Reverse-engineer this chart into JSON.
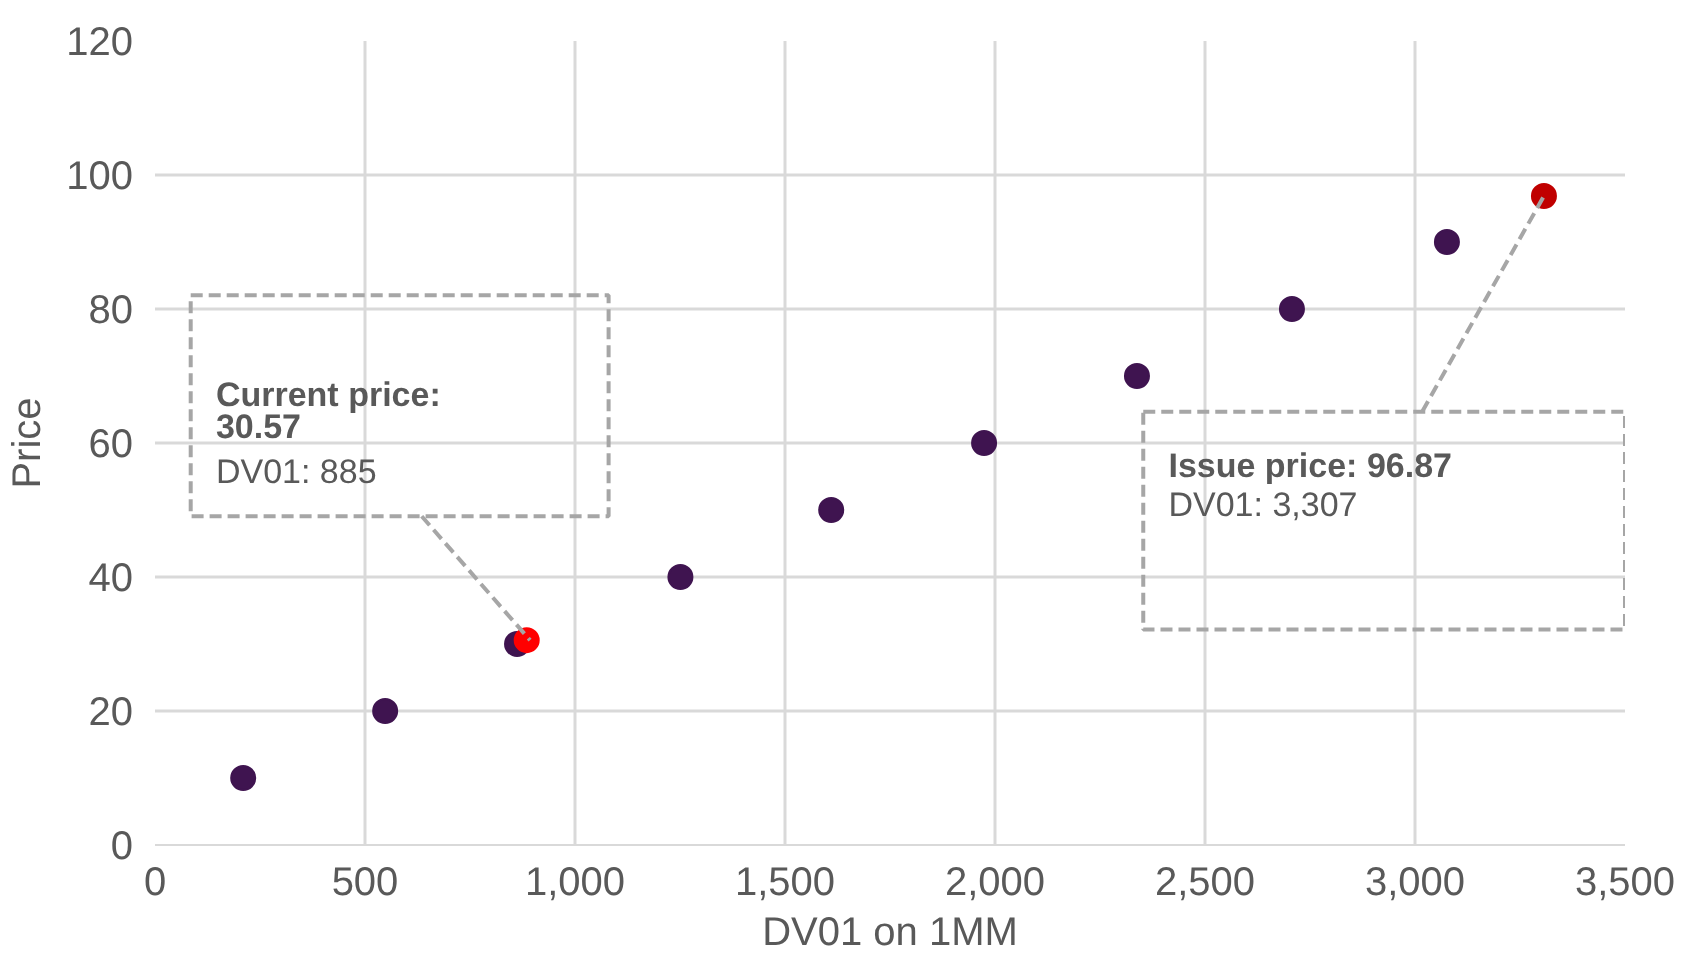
{
  "chart_data": {
    "type": "scatter",
    "xlabel": "DV01 on 1MM",
    "ylabel": "Price",
    "xlim": [
      0,
      3500
    ],
    "ylim": [
      0,
      120
    ],
    "xticks": [
      {
        "value": 0,
        "label": "0"
      },
      {
        "value": 500,
        "label": "500"
      },
      {
        "value": 1000,
        "label": "1,000"
      },
      {
        "value": 1500,
        "label": "1,500"
      },
      {
        "value": 2000,
        "label": "2,000"
      },
      {
        "value": 2500,
        "label": "2,500"
      },
      {
        "value": 3000,
        "label": "3,000"
      },
      {
        "value": 3500,
        "label": "3,500"
      }
    ],
    "yticks": [
      0,
      20,
      40,
      60,
      80,
      100,
      120
    ],
    "grid": true,
    "marker": "circle",
    "series": [
      {
        "color": "#3f1450",
        "x": [
          210,
          548,
          862,
          1251,
          1610,
          1974,
          2338,
          2707,
          3076
        ],
        "values": [
          10,
          20,
          30,
          40,
          50,
          60,
          70,
          80,
          90
        ]
      },
      {
        "color": "#ff0000",
        "x": [
          885
        ],
        "values": [
          30.57
        ]
      },
      {
        "color": "#c00000",
        "x": [
          3307
        ],
        "values": [
          96.87
        ]
      }
    ],
    "annotations": [
      {
        "text": "Current price:\n30.57\nDV01: 885",
        "x": 885,
        "y": 30.57
      },
      {
        "text": "Issue price: 96.87\nDV01: 3,307",
        "x": 3307,
        "y": 96.87
      }
    ]
  }
}
